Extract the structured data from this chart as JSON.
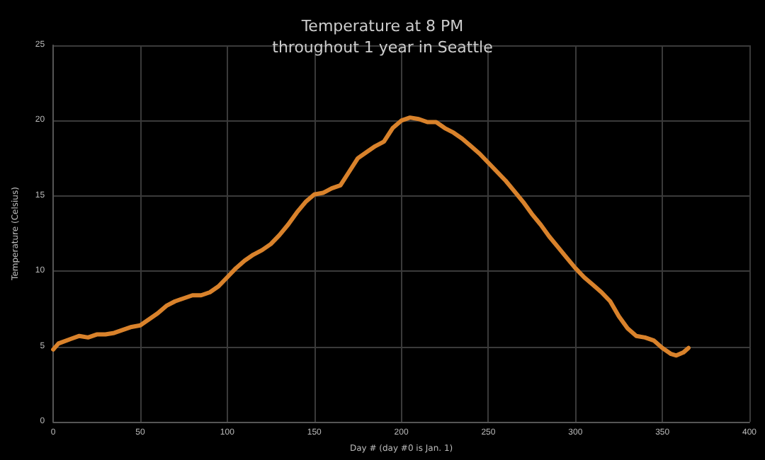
{
  "chart_data": {
    "type": "line",
    "title": "Temperature at 8 PM\nthroughout 1 year in Seattle",
    "xlabel": "Day # (day #0 is Jan. 1)",
    "ylabel": "Temperature (Celsius)",
    "x": [
      0,
      3,
      10,
      15,
      20,
      25,
      30,
      35,
      40,
      45,
      50,
      55,
      60,
      65,
      70,
      75,
      80,
      85,
      90,
      95,
      100,
      105,
      110,
      115,
      120,
      125,
      130,
      135,
      140,
      145,
      150,
      155,
      160,
      165,
      170,
      175,
      180,
      185,
      190,
      195,
      200,
      205,
      210,
      215,
      220,
      225,
      230,
      235,
      240,
      245,
      250,
      255,
      260,
      265,
      270,
      275,
      280,
      285,
      290,
      295,
      300,
      305,
      310,
      315,
      320,
      325,
      330,
      335,
      340,
      345,
      350,
      355,
      358,
      362,
      365
    ],
    "series": [
      {
        "color": "#d9822b",
        "values": [
          4.8,
          5.2,
          5.5,
          5.7,
          5.6,
          5.8,
          5.8,
          5.9,
          6.1,
          6.3,
          6.4,
          6.8,
          7.2,
          7.7,
          8.0,
          8.2,
          8.4,
          8.4,
          8.6,
          9.0,
          9.6,
          10.2,
          10.7,
          11.1,
          11.4,
          11.8,
          12.4,
          13.1,
          13.9,
          14.6,
          15.1,
          15.2,
          15.5,
          15.7,
          16.6,
          17.5,
          17.9,
          18.3,
          18.6,
          19.5,
          20.0,
          20.2,
          20.1,
          19.9,
          19.9,
          19.5,
          19.2,
          18.8,
          18.3,
          17.8,
          17.2,
          16.6,
          16.0,
          15.3,
          14.6,
          13.8,
          13.1,
          12.3,
          11.6,
          10.9,
          10.2,
          9.6,
          9.1,
          8.6,
          8.0,
          7.0,
          6.2,
          5.7,
          5.6,
          5.4,
          4.9,
          4.5,
          4.4,
          4.6,
          4.9
        ]
      }
    ],
    "xlim": [
      0,
      400
    ],
    "xticks": [
      0,
      50,
      100,
      150,
      200,
      250,
      300,
      350,
      400
    ],
    "ylim": [
      0,
      25
    ],
    "yticks": [
      0,
      5,
      10,
      15,
      20,
      25
    ],
    "grid": true,
    "marker": "none",
    "line_style": "solid"
  }
}
